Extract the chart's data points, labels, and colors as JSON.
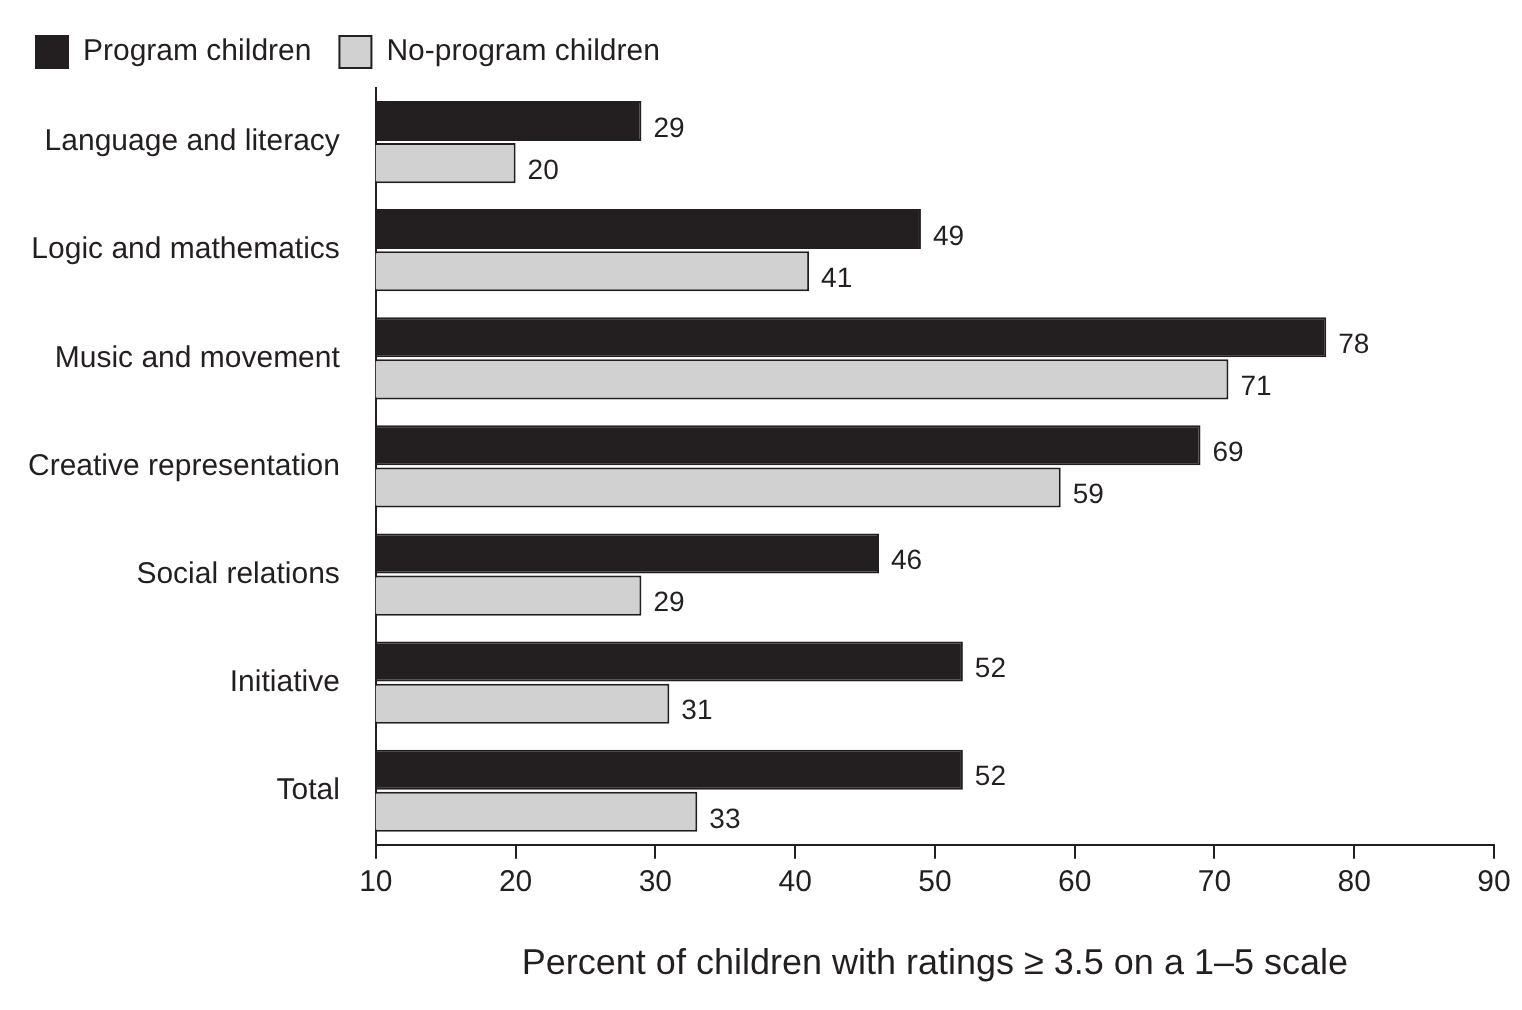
{
  "chart_data": {
    "type": "bar",
    "orientation": "horizontal",
    "xlabel": "Percent of children with ratings ≥ 3.5 on a 1–5 scale",
    "categories": [
      "Language and literacy",
      "Logic and mathematics",
      "Music and movement",
      "Creative representation",
      "Social relations",
      "Initiative",
      "Total"
    ],
    "series": [
      {
        "name": "Program children",
        "color": "#231f20",
        "values": [
          29,
          49,
          78,
          69,
          46,
          52,
          52
        ]
      },
      {
        "name": "No-program children",
        "color": "#d1d1d1",
        "values": [
          20,
          41,
          71,
          59,
          29,
          31,
          33
        ]
      }
    ],
    "xlim": [
      10,
      90
    ],
    "xticks": [
      10,
      20,
      30,
      40,
      50,
      60,
      70,
      80,
      90
    ],
    "grid": false,
    "legend": "top",
    "data_labels": true
  }
}
